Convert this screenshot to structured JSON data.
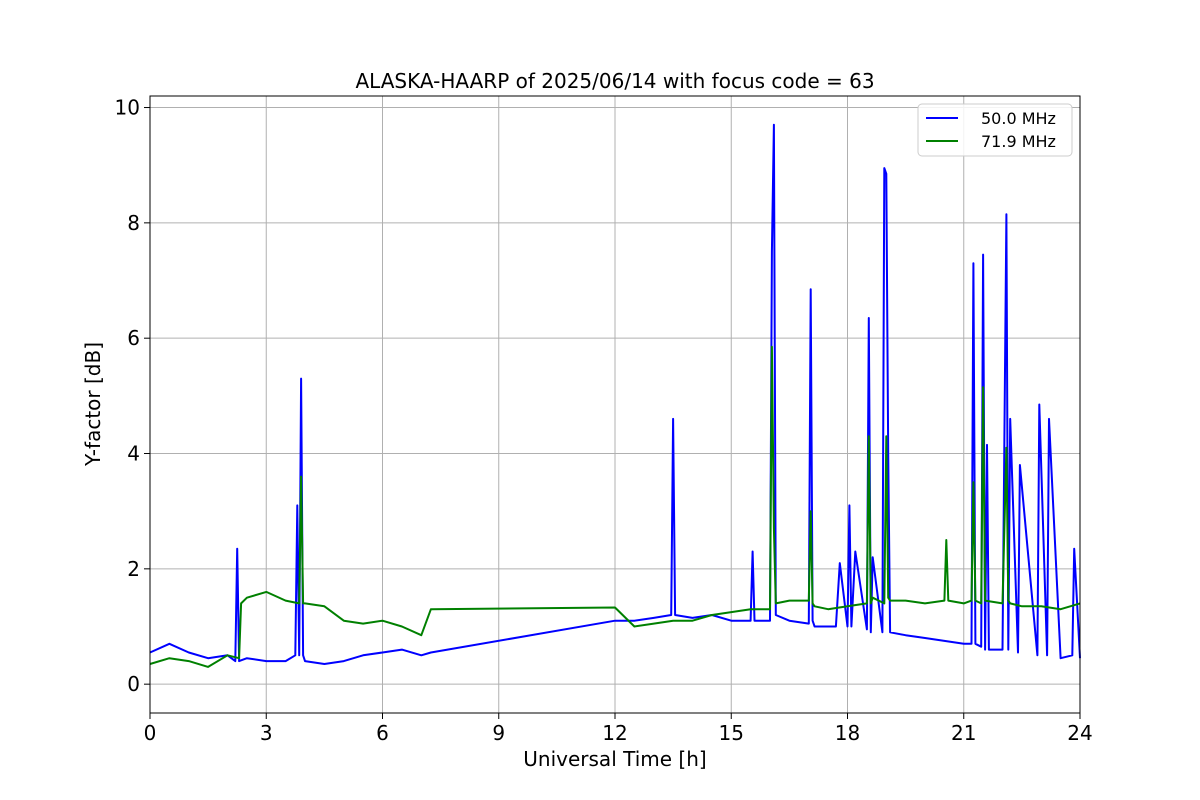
{
  "chart_data": {
    "type": "line",
    "title": "ALASKA-HAARP of 2025/06/14 with focus code = 63",
    "xlabel": "Universal Time [h]",
    "ylabel": "Y-factor [dB]",
    "xlim": [
      0,
      24
    ],
    "ylim": [
      -0.5,
      10.2
    ],
    "xticks": [
      0,
      3,
      6,
      9,
      12,
      15,
      18,
      21,
      24
    ],
    "yticks": [
      0,
      2,
      4,
      6,
      8,
      10
    ],
    "grid": true,
    "legend_position": "top-right",
    "series": [
      {
        "name": "50.0 MHz",
        "color": "#0000ff",
        "x": [
          0,
          0.5,
          1.0,
          1.5,
          2.0,
          2.2,
          2.25,
          2.3,
          2.5,
          3.0,
          3.5,
          3.75,
          3.8,
          3.85,
          3.9,
          3.95,
          4.0,
          4.5,
          5.0,
          5.5,
          6.0,
          6.5,
          7.0,
          7.25,
          12.0,
          12.5,
          13.0,
          13.45,
          13.5,
          13.55,
          14.0,
          14.5,
          15.0,
          15.5,
          15.55,
          15.6,
          16.0,
          16.05,
          16.1,
          16.15,
          16.5,
          17.0,
          17.05,
          17.1,
          17.15,
          17.5,
          17.7,
          17.8,
          18.0,
          18.05,
          18.1,
          18.2,
          18.5,
          18.55,
          18.6,
          18.65,
          18.9,
          18.95,
          19.0,
          19.05,
          19.1,
          19.5,
          20.0,
          20.5,
          21.0,
          21.2,
          21.25,
          21.3,
          21.45,
          21.5,
          21.55,
          21.6,
          21.65,
          22.0,
          22.1,
          22.15,
          22.2,
          22.4,
          22.45,
          22.9,
          22.95,
          23.15,
          23.2,
          23.5,
          23.8,
          23.85,
          24.0
        ],
        "y": [
          0.55,
          0.7,
          0.55,
          0.45,
          0.5,
          0.4,
          2.35,
          0.4,
          0.45,
          0.4,
          0.4,
          0.5,
          3.1,
          0.5,
          5.3,
          0.5,
          0.4,
          0.35,
          0.4,
          0.5,
          0.55,
          0.6,
          0.5,
          0.55,
          1.1,
          1.1,
          1.15,
          1.2,
          4.6,
          1.2,
          1.15,
          1.2,
          1.1,
          1.1,
          2.3,
          1.1,
          1.1,
          7.5,
          9.7,
          1.2,
          1.1,
          1.05,
          6.85,
          1.1,
          1.0,
          1.0,
          1.0,
          2.1,
          1.0,
          3.1,
          1.0,
          2.3,
          0.95,
          6.35,
          0.9,
          2.2,
          0.9,
          8.95,
          8.85,
          4.0,
          0.9,
          0.85,
          0.8,
          0.75,
          0.7,
          0.7,
          7.3,
          0.7,
          0.65,
          7.45,
          0.6,
          4.15,
          0.6,
          0.6,
          8.15,
          0.6,
          4.6,
          0.55,
          3.8,
          0.5,
          4.85,
          0.5,
          4.6,
          0.45,
          0.5,
          2.35,
          0.45
        ]
      },
      {
        "name": "71.9 MHz",
        "color": "#008000",
        "x": [
          0,
          0.5,
          1.0,
          1.5,
          2.0,
          2.3,
          2.35,
          2.5,
          3.0,
          3.5,
          3.85,
          3.9,
          3.95,
          4.0,
          4.5,
          5.0,
          5.5,
          6.0,
          6.5,
          7.0,
          7.25,
          12.0,
          12.5,
          13.0,
          13.5,
          14.0,
          14.5,
          15.0,
          15.5,
          16.0,
          16.05,
          16.1,
          16.15,
          16.5,
          17.0,
          17.05,
          17.1,
          17.15,
          17.5,
          18.0,
          18.5,
          18.55,
          18.6,
          18.65,
          18.95,
          19.0,
          19.05,
          19.1,
          19.5,
          20.0,
          20.5,
          20.55,
          20.6,
          21.0,
          21.2,
          21.25,
          21.3,
          21.45,
          21.5,
          21.55,
          22.0,
          22.1,
          22.15,
          22.2,
          22.5,
          23.0,
          23.5,
          24.0
        ],
        "y": [
          0.35,
          0.45,
          0.4,
          0.3,
          0.5,
          0.45,
          1.4,
          1.5,
          1.6,
          1.45,
          1.4,
          3.6,
          1.4,
          1.4,
          1.35,
          1.1,
          1.05,
          1.1,
          1.0,
          0.85,
          1.3,
          1.33,
          1.0,
          1.05,
          1.1,
          1.1,
          1.2,
          1.25,
          1.3,
          1.3,
          5.85,
          2.7,
          1.4,
          1.45,
          1.45,
          3.0,
          1.4,
          1.35,
          1.3,
          1.35,
          1.4,
          4.3,
          1.4,
          1.5,
          1.4,
          4.3,
          1.5,
          1.45,
          1.45,
          1.4,
          1.45,
          2.5,
          1.45,
          1.4,
          1.45,
          3.5,
          1.45,
          1.4,
          5.15,
          1.45,
          1.4,
          4.1,
          1.45,
          1.4,
          1.35,
          1.35,
          1.3,
          1.4
        ]
      }
    ]
  }
}
